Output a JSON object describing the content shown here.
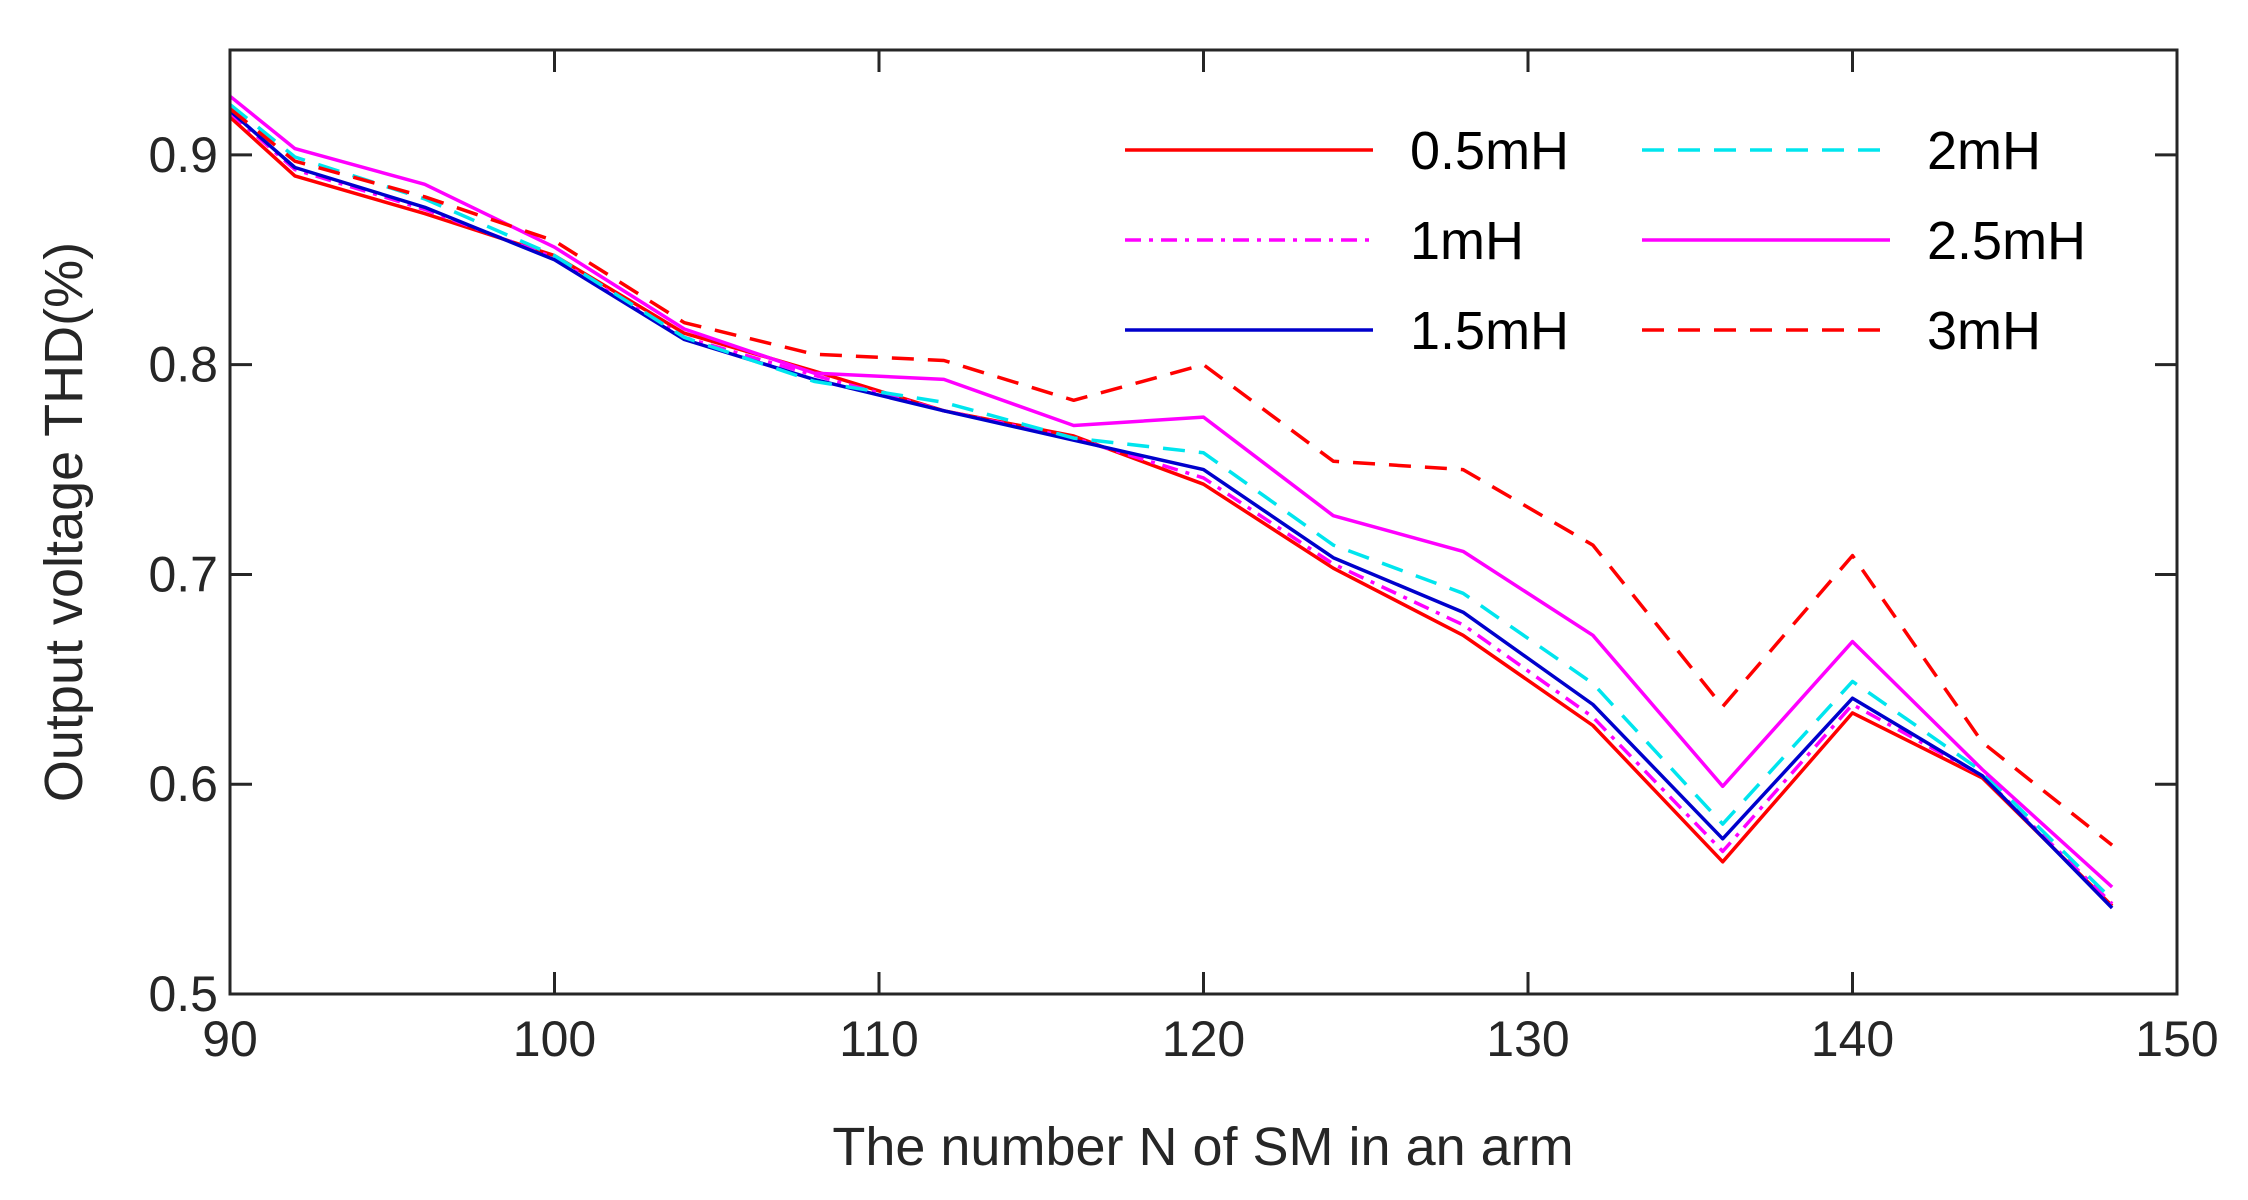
{
  "chart_data": {
    "type": "line",
    "title": "",
    "xlabel": "The number N of SM in an arm",
    "ylabel": "Output voltage THD(%)",
    "xlim": [
      90,
      150
    ],
    "ylim": [
      0.5,
      0.95
    ],
    "xticks": [
      90,
      100,
      110,
      120,
      130,
      140,
      150
    ],
    "xtick_labels": [
      "90",
      "100",
      "110",
      "120",
      "130",
      "140",
      "150"
    ],
    "yticks": [
      0.5,
      0.6,
      0.7,
      0.8,
      0.9
    ],
    "ytick_labels": [
      "0.5",
      "0.6",
      "0.7",
      "0.8",
      "0.9"
    ],
    "grid": false,
    "legend_position": "top-right",
    "x": [
      90,
      92,
      96,
      100,
      104,
      108,
      112,
      116,
      120,
      124,
      128,
      132,
      136,
      140,
      144,
      148
    ],
    "series": [
      {
        "name": "0.5mH",
        "color": "#ff0000",
        "style": "solid",
        "values": [
          0.918,
          0.89,
          0.872,
          0.852,
          0.815,
          0.797,
          0.778,
          0.766,
          0.743,
          0.703,
          0.671,
          0.628,
          0.563,
          0.634,
          0.603,
          0.542
        ]
      },
      {
        "name": "1mH",
        "color": "#ff00ff",
        "style": "dashdot",
        "values": [
          0.92,
          0.893,
          0.874,
          0.851,
          0.813,
          0.795,
          0.778,
          0.765,
          0.746,
          0.705,
          0.676,
          0.632,
          0.568,
          0.638,
          0.604,
          0.543
        ]
      },
      {
        "name": "1.5mH",
        "color": "#0000cc",
        "style": "solid",
        "values": [
          0.921,
          0.894,
          0.875,
          0.85,
          0.812,
          0.793,
          0.778,
          0.764,
          0.75,
          0.708,
          0.682,
          0.638,
          0.574,
          0.641,
          0.604,
          0.541
        ]
      },
      {
        "name": "2mH",
        "color": "#00e5ee",
        "style": "dashed",
        "values": [
          0.924,
          0.899,
          0.879,
          0.852,
          0.813,
          0.792,
          0.782,
          0.765,
          0.758,
          0.714,
          0.691,
          0.648,
          0.581,
          0.649,
          0.606,
          0.545
        ]
      },
      {
        "name": "2.5mH",
        "color": "#ff00ff",
        "style": "solid",
        "values": [
          0.928,
          0.903,
          0.886,
          0.856,
          0.817,
          0.796,
          0.793,
          0.771,
          0.775,
          0.728,
          0.711,
          0.671,
          0.599,
          0.668,
          0.607,
          0.551
        ]
      },
      {
        "name": "3mH",
        "color": "#ff0000",
        "style": "dashed",
        "values": [
          0.922,
          0.897,
          0.88,
          0.859,
          0.82,
          0.805,
          0.802,
          0.783,
          0.8,
          0.754,
          0.75,
          0.714,
          0.637,
          0.709,
          0.62,
          0.571
        ]
      }
    ]
  }
}
